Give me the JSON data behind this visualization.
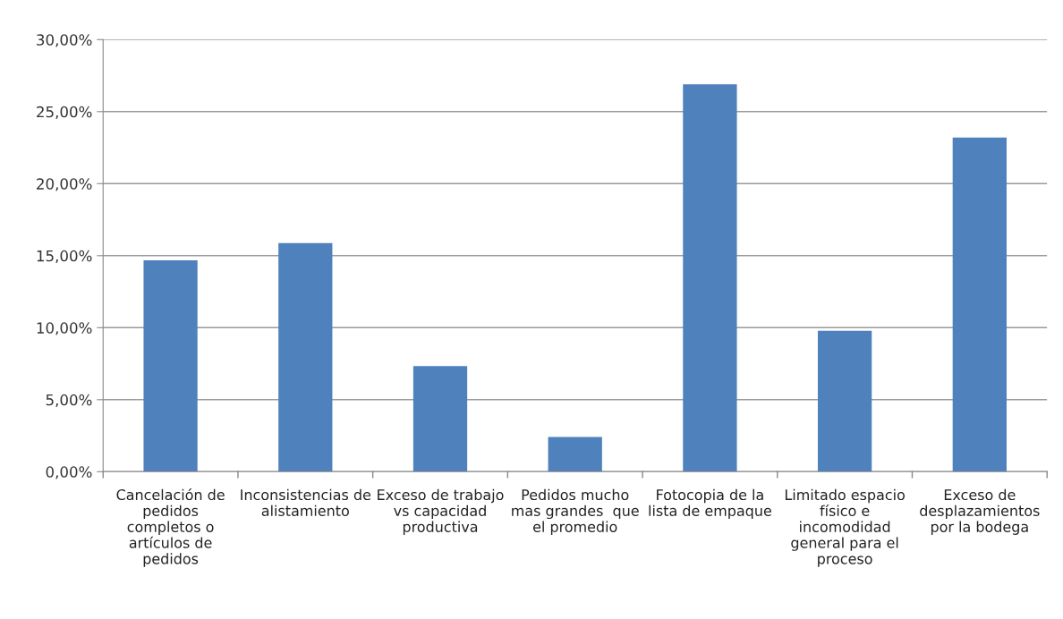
{
  "chart_data": {
    "type": "bar",
    "categories": [
      "Cancelación de\npedidos\ncompletos o\nartículos de\npedidos",
      "Inconsistencias de\nalistamiento",
      "Exceso de trabajo\nvs capacidad\nproductiva",
      "Pedidos mucho\nmas grandes  que\nel promedio",
      "Fotocopia de la\nlista de empaque",
      "Limitado espacio\nfísico e\nincomodidad\ngeneral para el\nproceso",
      "Exceso de\ndesplazamientos\npor la bodega"
    ],
    "values": [
      14.68,
      15.87,
      7.33,
      2.41,
      26.89,
      9.79,
      23.2
    ],
    "color": "#4f81bd",
    "ylim": [
      0,
      30
    ],
    "yticks": [
      {
        "value": 0,
        "label": "0,00%"
      },
      {
        "value": 5,
        "label": "5,00%"
      },
      {
        "value": 10,
        "label": "10,00%"
      },
      {
        "value": 15,
        "label": "15,00%"
      },
      {
        "value": 20,
        "label": "20,00%"
      },
      {
        "value": 25,
        "label": "25,00%"
      },
      {
        "value": 30,
        "label": "30,00%"
      }
    ],
    "grid": "y"
  }
}
